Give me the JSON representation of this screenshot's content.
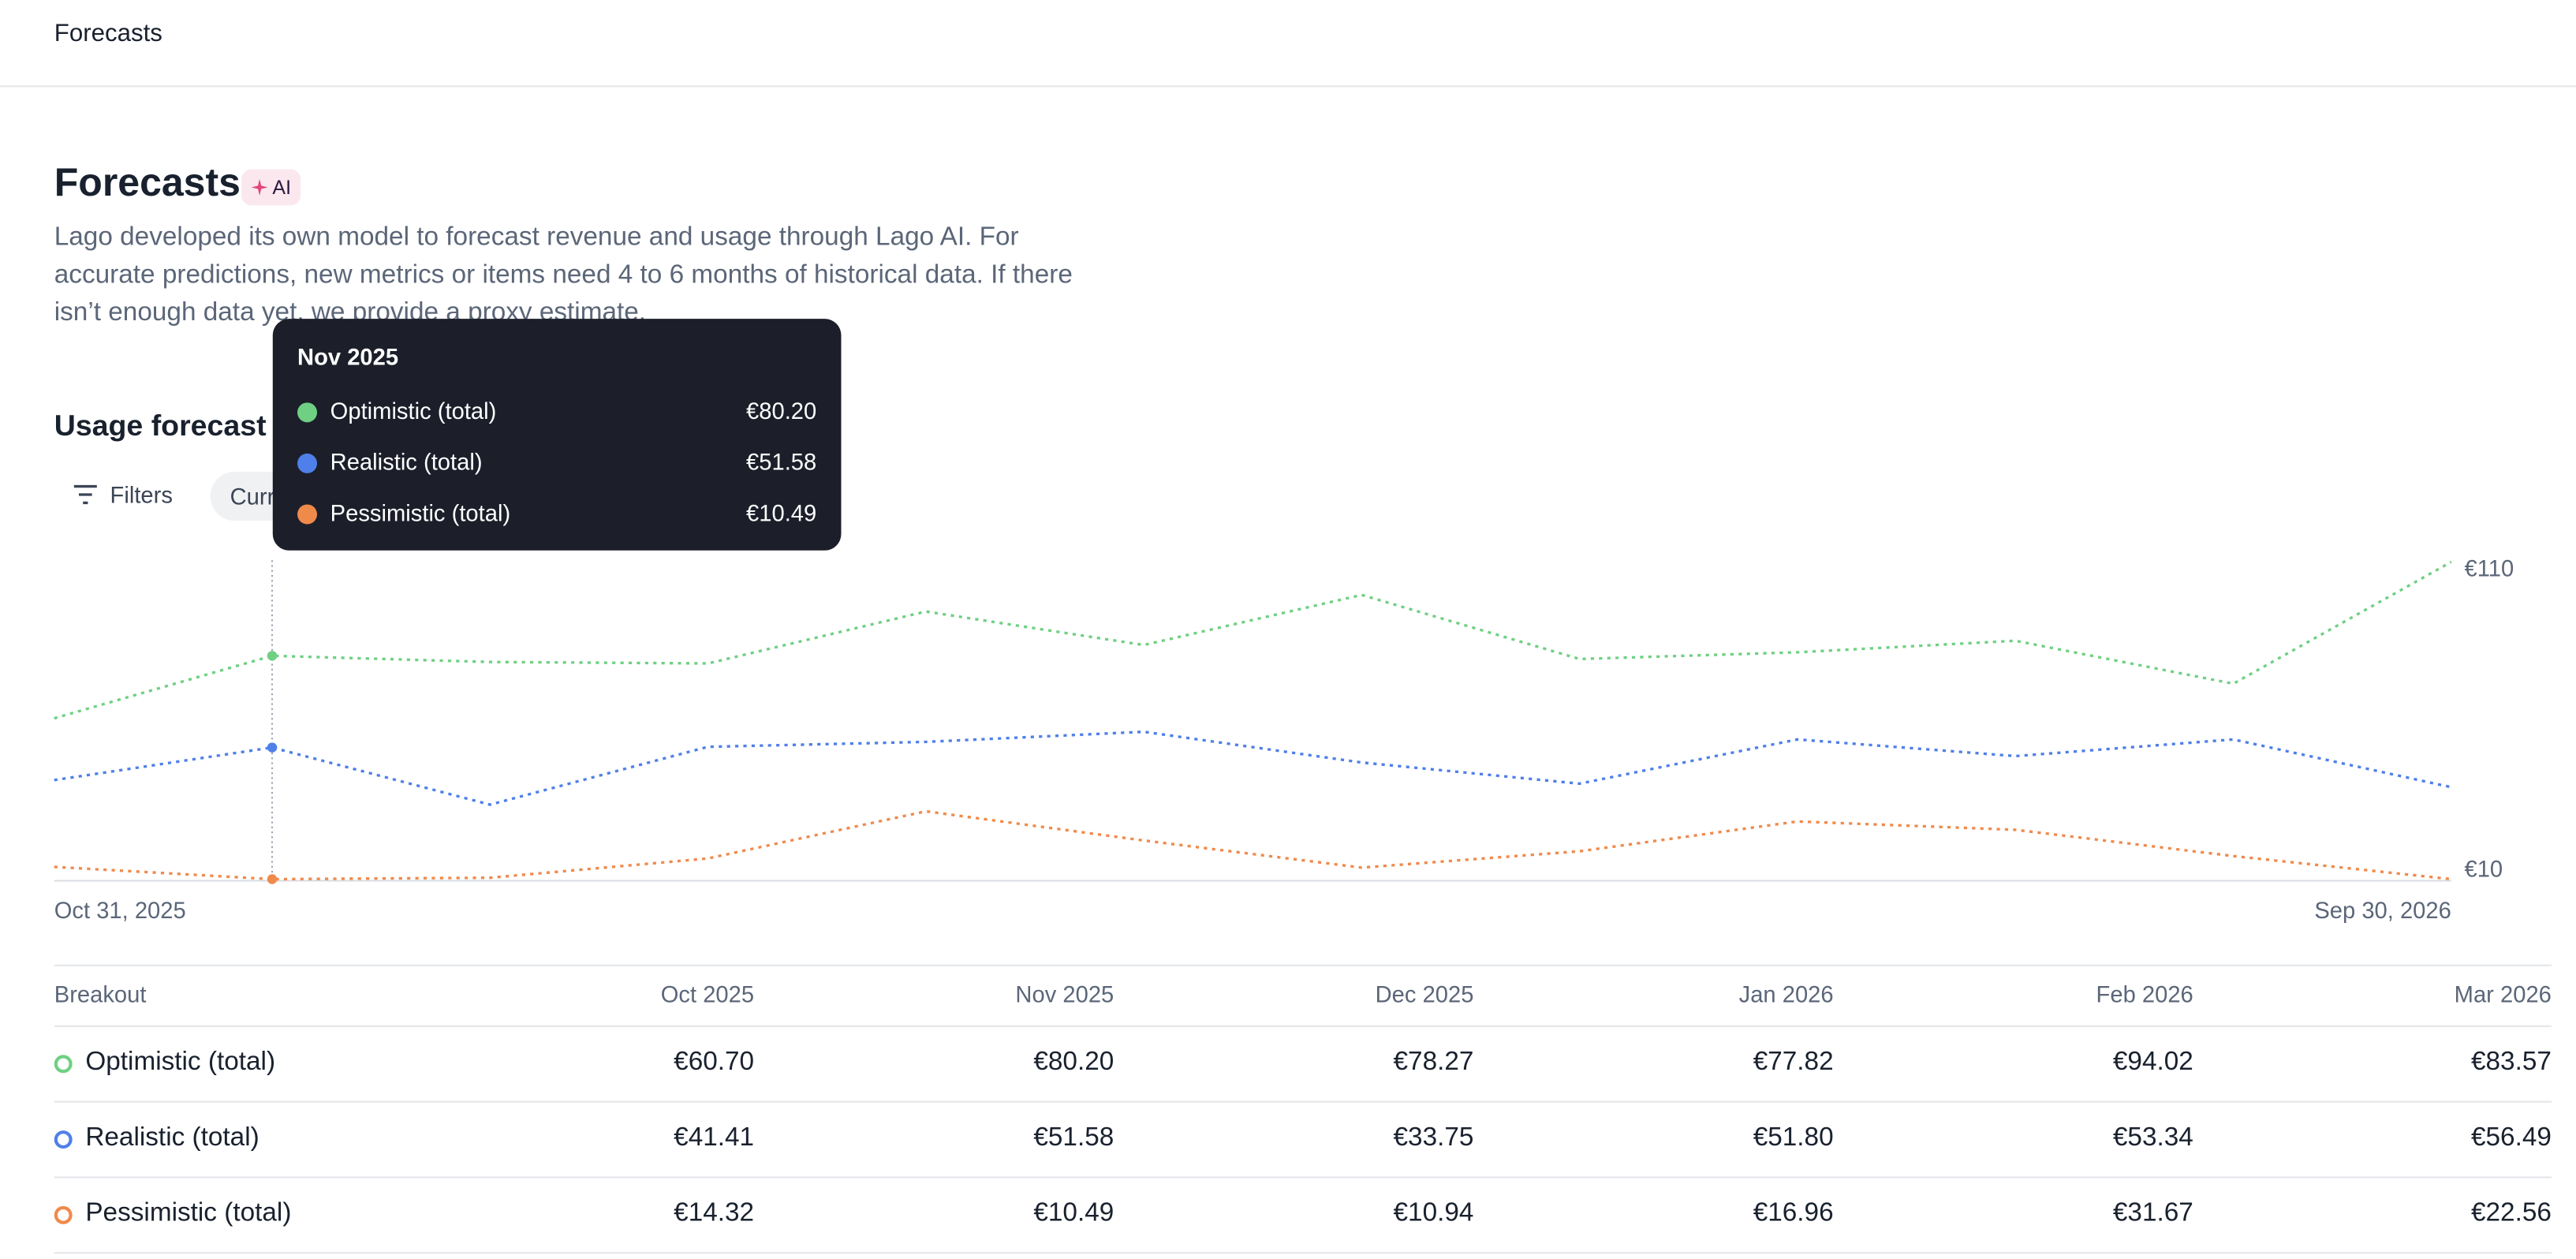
{
  "top_bar": {
    "title": "Forecasts"
  },
  "header": {
    "title": "Forecasts",
    "badge": "AI",
    "description": "Lago developed its own model to forecast revenue and usage through Lago AI. For accurate predictions, new metrics or items need 4 to 6 months of historical data. If there isn’t enough data yet, we provide a proxy estimate."
  },
  "usage_forecast": {
    "title": "Usage forecast",
    "filters_button": "Filters",
    "chip": "Curr"
  },
  "chart_data": {
    "type": "line",
    "x": [
      "Oct 31, 2025",
      null,
      null,
      null,
      null,
      null,
      null,
      null,
      null,
      null,
      null,
      "Sep 30, 2026"
    ],
    "series": [
      {
        "name": "Optimistic (total)",
        "color": "#6fd083",
        "values": [
          60.7,
          80.2,
          78.27,
          77.82,
          94.02,
          83.57,
          99.2,
          79.2,
          81.3,
          84.9,
          71.5,
          109.5
        ]
      },
      {
        "name": "Realistic (total)",
        "color": "#4f7fe8",
        "values": [
          41.41,
          51.58,
          33.75,
          51.8,
          53.34,
          56.49,
          46.9,
          40.3,
          54.1,
          48.9,
          54.1,
          39.2
        ]
      },
      {
        "name": "Pessimistic (total)",
        "color": "#f08a4b",
        "values": [
          14.32,
          10.49,
          10.94,
          16.96,
          31.67,
          22.56,
          14.1,
          19.2,
          28.5,
          25.9,
          17.7,
          10.5
        ]
      }
    ],
    "ylim": [
      10,
      110
    ],
    "yticks": [
      {
        "value": 110,
        "label": "€110"
      },
      {
        "value": 10,
        "label": "€10"
      }
    ],
    "grid": false
  },
  "tooltip": {
    "title": "Nov 2025",
    "items": [
      {
        "name": "Optimistic (total)",
        "value": "€80.20"
      },
      {
        "name": "Realistic (total)",
        "value": "€51.58"
      },
      {
        "name": "Pessimistic (total)",
        "value": "€10.49"
      }
    ]
  },
  "table": {
    "header": [
      "Breakout",
      "Oct 2025",
      "Nov 2025",
      "Dec 2025",
      "Jan 2026",
      "Feb 2026",
      "Mar 2026"
    ],
    "rows": [
      [
        "Optimistic (total)",
        "€60.70",
        "€80.20",
        "€78.27",
        "€77.82",
        "€94.02",
        "€83.57"
      ],
      [
        "Realistic (total)",
        "€41.41",
        "€51.58",
        "€33.75",
        "€51.80",
        "€53.34",
        "€56.49"
      ],
      [
        "Pessimistic (total)",
        "€14.32",
        "€10.49",
        "€10.94",
        "€16.96",
        "€31.67",
        "€22.56"
      ]
    ]
  }
}
